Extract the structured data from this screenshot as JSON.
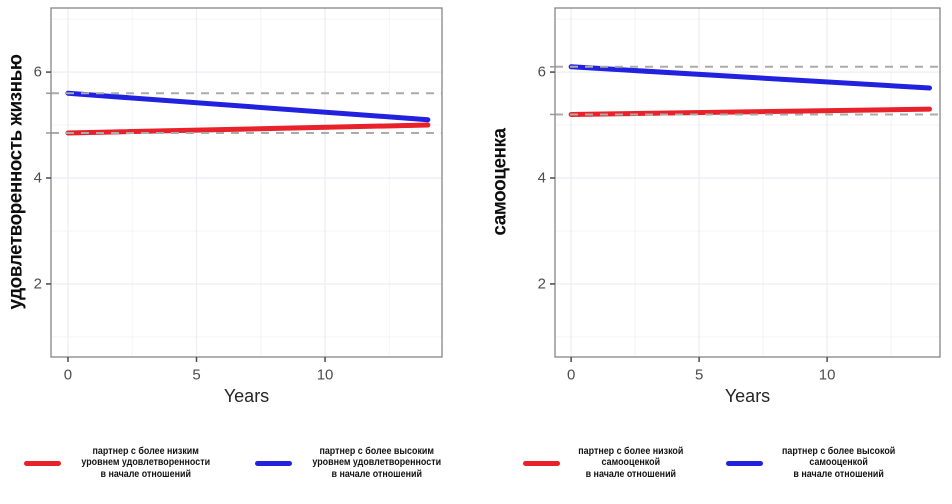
{
  "colors": {
    "background": "#FFFFFF",
    "red_line": "#E8212A",
    "blue_line": "#2121DE",
    "dashed_reference": "#ABABAB",
    "panel_border": "#858585",
    "grid_major": "#ECECF2",
    "grid_minor": "#F4F4F8",
    "tick_mark": "#4A4A4A",
    "tick_label": "#4D4D4D",
    "axis_title": "#262626",
    "legend_text": "#141414"
  },
  "chart_data": [
    {
      "type": "line",
      "title": "",
      "xlabel": "Years",
      "ylabel": "удовлетворенность жизнью",
      "x_ticks": [
        0,
        5,
        10
      ],
      "y_ticks": [
        2,
        4,
        6
      ],
      "x_minor_gridlines": [
        2.5,
        7.5,
        12.5
      ],
      "y_minor_gridlines": [
        1,
        3,
        5,
        7
      ],
      "xlim": [
        -0.66,
        14.55
      ],
      "ylim": [
        0.62,
        7.21
      ],
      "grid": true,
      "legend_position": "bottom",
      "series": [
        {
          "name": "partner-lower-initial-satisfaction",
          "color": "#E8212A",
          "x": [
            0,
            14
          ],
          "y": [
            4.85,
            5.0
          ],
          "baseline_dashed_y": 4.85,
          "legend_lines": [
            "партнер с более низким",
            "уровнем удовлетворенности",
            "в начале отношений"
          ]
        },
        {
          "name": "partner-higher-initial-satisfaction",
          "color": "#2121DE",
          "x": [
            0,
            14
          ],
          "y": [
            5.6,
            5.1
          ],
          "baseline_dashed_y": 5.6,
          "legend_lines": [
            "партнер с более высоким",
            "уровнем удовлетворенности",
            "в начале отношений"
          ]
        }
      ]
    },
    {
      "type": "line",
      "title": "",
      "xlabel": "Years",
      "ylabel": "самооценка",
      "x_ticks": [
        0,
        5,
        10
      ],
      "y_ticks": [
        2,
        4,
        6
      ],
      "x_minor_gridlines": [
        2.5,
        7.5,
        12.5
      ],
      "y_minor_gridlines": [
        1,
        3,
        5,
        7
      ],
      "xlim": [
        -0.63,
        14.41
      ],
      "ylim": [
        0.62,
        7.21
      ],
      "grid": true,
      "legend_position": "bottom",
      "series": [
        {
          "name": "partner-lower-initial-self-esteem",
          "color": "#E8212A",
          "x": [
            0,
            14
          ],
          "y": [
            5.2,
            5.3
          ],
          "baseline_dashed_y": 5.2,
          "legend_lines": [
            "партнер с более низкой",
            "самооценкой",
            "в начале отношений"
          ]
        },
        {
          "name": "partner-higher-initial-self-esteem",
          "color": "#2121DE",
          "x": [
            0,
            14
          ],
          "y": [
            6.1,
            5.7
          ],
          "baseline_dashed_y": 6.1,
          "legend_lines": [
            "партнер с более высокой",
            "самооценкой",
            "в начале отношений"
          ]
        }
      ]
    }
  ]
}
